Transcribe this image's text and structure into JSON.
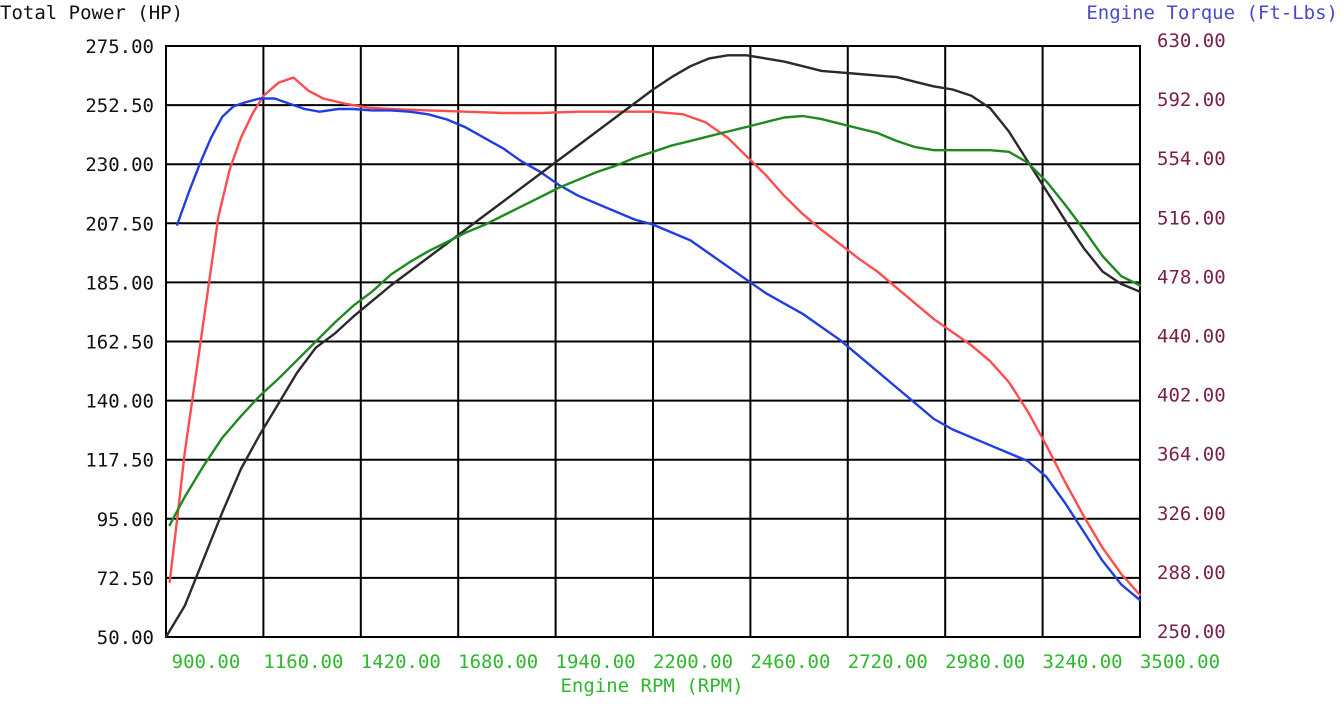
{
  "chart_data": {
    "type": "line",
    "title_left": "Total Power (HP)",
    "title_right": "Engine Torque (Ft-Lbs)",
    "xlabel": "Engine RPM (RPM)",
    "xlim": [
      900,
      3500
    ],
    "ylim_left": [
      50,
      275
    ],
    "ylim_right": [
      250,
      630
    ],
    "x_ticks": [
      "900.00",
      "1160.00",
      "1420.00",
      "1680.00",
      "1940.00",
      "2200.00",
      "2460.00",
      "2720.00",
      "2980.00",
      "3240.00",
      "3500.00"
    ],
    "y_left_ticks": [
      "275.00",
      "252.50",
      "230.00",
      "207.50",
      "185.00",
      "162.50",
      "140.00",
      "117.50",
      "95.00",
      "72.50",
      "50.00"
    ],
    "y_right_ticks": [
      "630.00",
      "592.00",
      "554.00",
      "516.00",
      "478.00",
      "440.00",
      "402.00",
      "364.00",
      "326.00",
      "288.00",
      "250.00"
    ],
    "colors": {
      "title_left": "#111111",
      "title_right": "#4a4ac8",
      "axis_left_ticks": "#111111",
      "axis_right_ticks": "#7a1e4a",
      "axis_x": "#2db82d",
      "grid": "#000000"
    },
    "series": [
      {
        "axis": "left",
        "color": "#ff4d4d",
        "points": [
          [
            910,
            71
          ],
          [
            930,
            95
          ],
          [
            950,
            120
          ],
          [
            980,
            150
          ],
          [
            1010,
            180
          ],
          [
            1040,
            210
          ],
          [
            1070,
            228
          ],
          [
            1100,
            240
          ],
          [
            1130,
            249
          ],
          [
            1160,
            256
          ],
          [
            1200,
            261
          ],
          [
            1240,
            263
          ],
          [
            1280,
            258
          ],
          [
            1320,
            255
          ],
          [
            1380,
            253
          ],
          [
            1440,
            251.5
          ],
          [
            1500,
            251
          ],
          [
            1600,
            250.5
          ],
          [
            1700,
            250
          ],
          [
            1800,
            249.5
          ],
          [
            1900,
            249.5
          ],
          [
            2000,
            250
          ],
          [
            2100,
            250
          ],
          [
            2200,
            250
          ],
          [
            2280,
            249
          ],
          [
            2340,
            246
          ],
          [
            2400,
            240
          ],
          [
            2450,
            233
          ],
          [
            2500,
            226
          ],
          [
            2550,
            218
          ],
          [
            2600,
            211
          ],
          [
            2650,
            205
          ],
          [
            2700,
            199.5
          ],
          [
            2750,
            194
          ],
          [
            2800,
            189
          ],
          [
            2850,
            183
          ],
          [
            2900,
            177
          ],
          [
            2950,
            171
          ],
          [
            3000,
            166
          ],
          [
            3050,
            161
          ],
          [
            3100,
            155
          ],
          [
            3150,
            147
          ],
          [
            3200,
            136
          ],
          [
            3250,
            123
          ],
          [
            3300,
            109
          ],
          [
            3350,
            96
          ],
          [
            3400,
            84
          ],
          [
            3450,
            74
          ],
          [
            3500,
            66
          ]
        ]
      },
      {
        "axis": "left",
        "color": "#1f3fe0",
        "points": [
          [
            930,
            207
          ],
          [
            960,
            219
          ],
          [
            990,
            230
          ],
          [
            1020,
            240
          ],
          [
            1050,
            248
          ],
          [
            1080,
            252
          ],
          [
            1110,
            253.5
          ],
          [
            1150,
            255
          ],
          [
            1190,
            255
          ],
          [
            1230,
            253
          ],
          [
            1270,
            251
          ],
          [
            1310,
            250
          ],
          [
            1360,
            251
          ],
          [
            1400,
            251
          ],
          [
            1450,
            250.5
          ],
          [
            1500,
            250.5
          ],
          [
            1550,
            250
          ],
          [
            1600,
            249
          ],
          [
            1650,
            247
          ],
          [
            1700,
            244
          ],
          [
            1750,
            240
          ],
          [
            1800,
            236
          ],
          [
            1850,
            231
          ],
          [
            1900,
            227
          ],
          [
            1950,
            222
          ],
          [
            2000,
            218
          ],
          [
            2050,
            215
          ],
          [
            2100,
            212
          ],
          [
            2150,
            209
          ],
          [
            2200,
            207
          ],
          [
            2250,
            204
          ],
          [
            2300,
            201
          ],
          [
            2350,
            196
          ],
          [
            2400,
            191
          ],
          [
            2450,
            186
          ],
          [
            2500,
            181
          ],
          [
            2550,
            177
          ],
          [
            2600,
            173
          ],
          [
            2650,
            168
          ],
          [
            2700,
            163
          ],
          [
            2750,
            157
          ],
          [
            2800,
            151
          ],
          [
            2850,
            145
          ],
          [
            2900,
            139
          ],
          [
            2950,
            133
          ],
          [
            3000,
            129
          ],
          [
            3050,
            126
          ],
          [
            3100,
            123
          ],
          [
            3150,
            120
          ],
          [
            3200,
            117
          ],
          [
            3250,
            111
          ],
          [
            3300,
            101
          ],
          [
            3350,
            90
          ],
          [
            3400,
            79
          ],
          [
            3450,
            70
          ],
          [
            3500,
            64
          ]
        ]
      }
    ],
    "series_right": [
      {
        "axis": "right",
        "color": "#2a2a2a",
        "points": [
          [
            900,
            250
          ],
          [
            950,
            270
          ],
          [
            1000,
            300
          ],
          [
            1050,
            330
          ],
          [
            1100,
            358
          ],
          [
            1150,
            380
          ],
          [
            1200,
            400
          ],
          [
            1250,
            420
          ],
          [
            1300,
            436
          ],
          [
            1350,
            445
          ],
          [
            1400,
            456
          ],
          [
            1450,
            466
          ],
          [
            1500,
            476
          ],
          [
            1550,
            485
          ],
          [
            1600,
            494
          ],
          [
            1650,
            503
          ],
          [
            1700,
            512
          ],
          [
            1750,
            521
          ],
          [
            1800,
            530
          ],
          [
            1850,
            539
          ],
          [
            1900,
            548
          ],
          [
            1950,
            557
          ],
          [
            2000,
            566
          ],
          [
            2050,
            575
          ],
          [
            2100,
            584
          ],
          [
            2150,
            593
          ],
          [
            2200,
            602
          ],
          [
            2250,
            610
          ],
          [
            2300,
            617
          ],
          [
            2350,
            622
          ],
          [
            2400,
            624
          ],
          [
            2450,
            624
          ],
          [
            2500,
            622
          ],
          [
            2550,
            620
          ],
          [
            2600,
            617
          ],
          [
            2650,
            614
          ],
          [
            2700,
            613
          ],
          [
            2750,
            612
          ],
          [
            2800,
            611
          ],
          [
            2850,
            610
          ],
          [
            2900,
            607
          ],
          [
            2950,
            604
          ],
          [
            3000,
            602
          ],
          [
            3050,
            598
          ],
          [
            3100,
            590
          ],
          [
            3150,
            575
          ],
          [
            3200,
            556
          ],
          [
            3250,
            537
          ],
          [
            3300,
            518
          ],
          [
            3350,
            500
          ],
          [
            3400,
            485
          ],
          [
            3450,
            477
          ],
          [
            3500,
            472
          ]
        ]
      },
      {
        "axis": "right",
        "color": "#1f8a1f",
        "points": [
          [
            910,
            322
          ],
          [
            950,
            340
          ],
          [
            1000,
            360
          ],
          [
            1050,
            378
          ],
          [
            1100,
            392
          ],
          [
            1150,
            405
          ],
          [
            1200,
            416
          ],
          [
            1250,
            428
          ],
          [
            1300,
            440
          ],
          [
            1350,
            452
          ],
          [
            1400,
            463
          ],
          [
            1450,
            472
          ],
          [
            1500,
            483
          ],
          [
            1550,
            491
          ],
          [
            1600,
            498
          ],
          [
            1650,
            504
          ],
          [
            1700,
            510
          ],
          [
            1750,
            515
          ],
          [
            1800,
            521
          ],
          [
            1850,
            527
          ],
          [
            1900,
            533
          ],
          [
            1950,
            539
          ],
          [
            2000,
            544
          ],
          [
            2050,
            549
          ],
          [
            2100,
            553
          ],
          [
            2150,
            558
          ],
          [
            2200,
            562
          ],
          [
            2250,
            566
          ],
          [
            2300,
            569
          ],
          [
            2350,
            572
          ],
          [
            2400,
            575
          ],
          [
            2450,
            578
          ],
          [
            2500,
            581
          ],
          [
            2550,
            584
          ],
          [
            2600,
            585
          ],
          [
            2650,
            583
          ],
          [
            2700,
            580
          ],
          [
            2750,
            577
          ],
          [
            2800,
            574
          ],
          [
            2850,
            569
          ],
          [
            2900,
            565
          ],
          [
            2950,
            563
          ],
          [
            3000,
            563
          ],
          [
            3050,
            563
          ],
          [
            3100,
            563
          ],
          [
            3150,
            562
          ],
          [
            3200,
            555
          ],
          [
            3250,
            543
          ],
          [
            3300,
            528
          ],
          [
            3350,
            512
          ],
          [
            3400,
            495
          ],
          [
            3450,
            482
          ],
          [
            3500,
            476
          ]
        ]
      }
    ]
  }
}
